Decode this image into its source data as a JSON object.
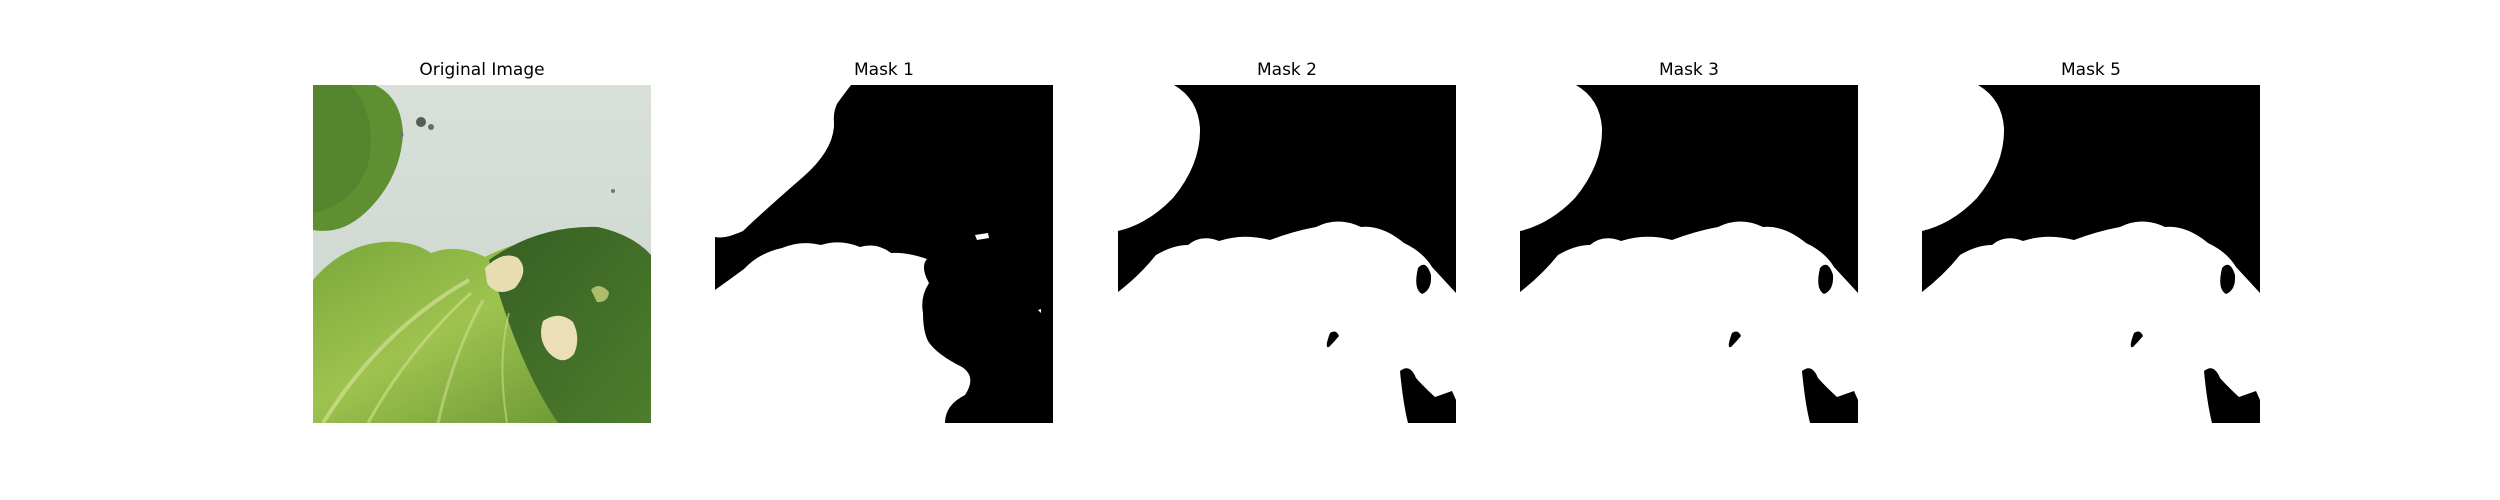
{
  "panels": [
    {
      "title": "Original Image",
      "kind": "photo"
    },
    {
      "title": "Mask 1",
      "kind": "mask",
      "variant": "mask-1"
    },
    {
      "title": "Mask 2",
      "kind": "mask",
      "variant": "mask-2"
    },
    {
      "title": "Mask 3",
      "kind": "mask",
      "variant": "mask-3"
    },
    {
      "title": "Mask 5",
      "kind": "mask",
      "variant": "mask-5"
    }
  ],
  "colors": {
    "background": "#ffffff",
    "mask_foreground": "#ffffff",
    "mask_background": "#000000",
    "leaf_dark": "#3d6a25",
    "leaf_mid": "#6f9a35",
    "leaf_light": "#a8c24d",
    "wall": "#d6ddd7"
  }
}
